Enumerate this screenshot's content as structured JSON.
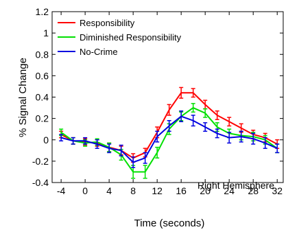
{
  "chart_data": {
    "type": "line",
    "xlabel": "Time (seconds)",
    "ylabel": "% Signal Change",
    "xlim": [
      -5.5,
      33
    ],
    "ylim": [
      -0.4,
      1.2
    ],
    "xticks": [
      -4,
      0,
      4,
      8,
      12,
      16,
      20,
      24,
      28,
      32
    ],
    "xtick_labels": [
      "-4",
      "0",
      "4",
      "8",
      "12",
      "16",
      "20",
      "24",
      "28",
      "32"
    ],
    "yticks": [
      -0.4,
      -0.2,
      0,
      0.2,
      0.4,
      0.6,
      0.8,
      1.0,
      1.2
    ],
    "ytick_labels": [
      "-0.4",
      "-0.2",
      "0",
      "0.2",
      "0.4",
      "0.6",
      "0.8",
      "1",
      "1.2"
    ],
    "x": [
      -4,
      -2,
      0,
      2,
      4,
      6,
      8,
      10,
      12,
      14,
      16,
      18,
      20,
      22,
      24,
      26,
      28,
      30,
      32
    ],
    "series": [
      {
        "name": "Responsibility",
        "color": "#ff0000",
        "values": [
          0.05,
          -0.01,
          -0.02,
          -0.03,
          -0.07,
          -0.1,
          -0.17,
          -0.12,
          0.07,
          0.28,
          0.44,
          0.44,
          0.33,
          0.23,
          0.17,
          0.11,
          0.05,
          0.02,
          -0.04
        ],
        "errors": [
          0.03,
          0.03,
          0.03,
          0.03,
          0.04,
          0.04,
          0.04,
          0.04,
          0.05,
          0.05,
          0.05,
          0.04,
          0.04,
          0.04,
          0.04,
          0.04,
          0.04,
          0.04,
          0.04
        ]
      },
      {
        "name": "Diminished Responsibility",
        "color": "#00e000",
        "values": [
          0.07,
          -0.01,
          -0.03,
          -0.02,
          -0.07,
          -0.14,
          -0.3,
          -0.3,
          -0.12,
          0.1,
          0.22,
          0.3,
          0.25,
          0.12,
          0.06,
          0.04,
          0.03,
          0.0,
          -0.08
        ],
        "errors": [
          0.03,
          0.03,
          0.03,
          0.03,
          0.04,
          0.05,
          0.06,
          0.06,
          0.05,
          0.05,
          0.04,
          0.04,
          0.04,
          0.04,
          0.04,
          0.04,
          0.04,
          0.04,
          0.04
        ]
      },
      {
        "name": "No-Crime",
        "color": "#0000e0",
        "values": [
          0.02,
          -0.01,
          -0.01,
          -0.04,
          -0.08,
          -0.1,
          -0.21,
          -0.17,
          0.03,
          0.13,
          0.22,
          0.18,
          0.12,
          0.06,
          0.02,
          0.03,
          0.01,
          -0.03,
          -0.08
        ],
        "errors": [
          0.03,
          0.03,
          0.03,
          0.04,
          0.04,
          0.05,
          0.05,
          0.05,
          0.05,
          0.05,
          0.05,
          0.05,
          0.04,
          0.04,
          0.05,
          0.05,
          0.05,
          0.05,
          0.04
        ]
      }
    ],
    "legend_position": "top-left",
    "annotation": "Right Hemisphere",
    "grid": false
  }
}
